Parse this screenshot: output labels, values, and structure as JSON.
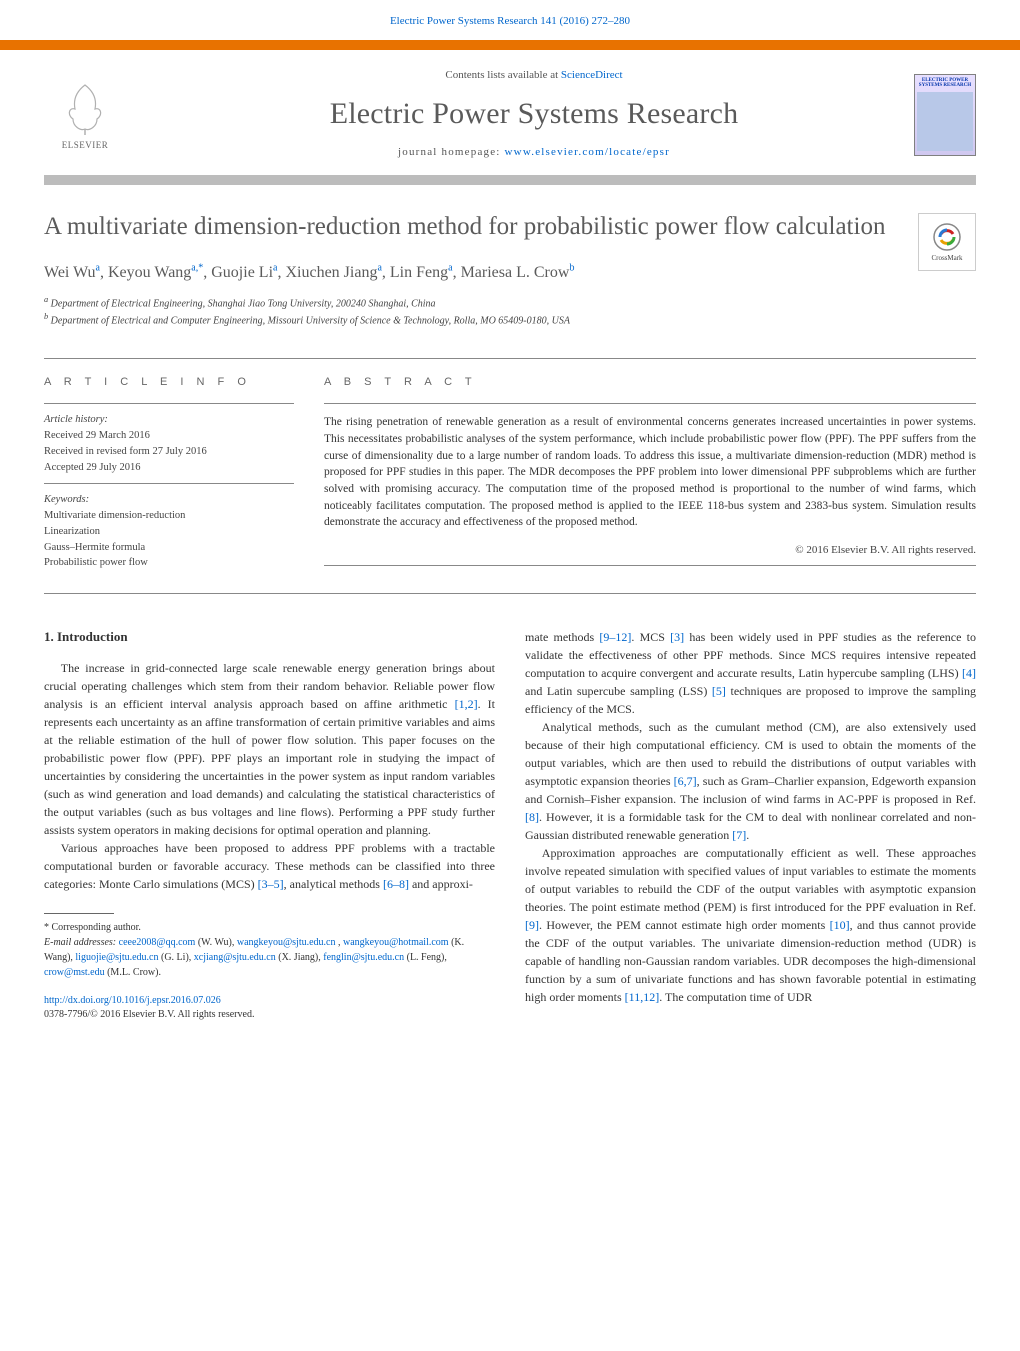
{
  "top_link": {
    "journal": "Electric Power Systems Research",
    "cite": "141 (2016) 272–280"
  },
  "masthead": {
    "contents_prefix": "Contents lists available at ",
    "contents_link": "ScienceDirect",
    "journal_name": "Electric Power Systems Research",
    "homepage_prefix": "journal homepage: ",
    "homepage_url": "www.elsevier.com/locate/epsr",
    "elsevier_label": "ELSEVIER",
    "cover_title": "ELECTRIC POWER SYSTEMS RESEARCH"
  },
  "crossmark_label": "CrossMark",
  "title": "A multivariate dimension-reduction method for probabilistic power flow calculation",
  "authors_html": "Wei Wu<sup>a</sup>, Keyou Wang<sup>a,*</sup>, Guojie Li<sup>a</sup>, Xiuchen Jiang<sup>a</sup>, Lin Feng<sup>a</sup>, Mariesa L. Crow<sup>b</sup>",
  "affiliations": {
    "a": "Department of Electrical Engineering, Shanghai Jiao Tong University, 200240 Shanghai, China",
    "b": "Department of Electrical and Computer Engineering, Missouri University of Science & Technology, Rolla, MO 65409-0180, USA"
  },
  "info": {
    "heading": "A R T I C L E   I N F O",
    "history_label": "Article history:",
    "received": "Received 29 March 2016",
    "revised": "Received in revised form 27 July 2016",
    "accepted": "Accepted 29 July 2016",
    "keywords_label": "Keywords:",
    "keywords": [
      "Multivariate dimension-reduction",
      "Linearization",
      "Gauss–Hermite formula",
      "Probabilistic power flow"
    ]
  },
  "abstract": {
    "heading": "A B S T R A C T",
    "text": "The rising penetration of renewable generation as a result of environmental concerns generates increased uncertainties in power systems. This necessitates probabilistic analyses of the system performance, which include probabilistic power flow (PPF). The PPF suffers from the curse of dimensionality due to a large number of random loads. To address this issue, a multivariate dimension-reduction (MDR) method is proposed for PPF studies in this paper. The MDR decomposes the PPF problem into lower dimensional PPF subproblems which are further solved with promising accuracy. The computation time of the proposed method is proportional to the number of wind farms, which noticeably facilitates computation. The proposed method is applied to the IEEE 118-bus system and 2383-bus system. Simulation results demonstrate the accuracy and effectiveness of the proposed method.",
    "copyright": "© 2016 Elsevier B.V. All rights reserved."
  },
  "section1_heading": "1. Introduction",
  "left_paras": [
    "The increase in grid-connected large scale renewable energy generation brings about crucial operating challenges which stem from their random behavior. Reliable power flow analysis is an efficient interval analysis approach based on affine arithmetic [1,2]. It represents each uncertainty as an affine transformation of certain primitive variables and aims at the reliable estimation of the hull of power flow solution. This paper focuses on the probabilistic power flow (PPF). PPF plays an important role in studying the impact of uncertainties by considering the uncertainties in the power system as input random variables (such as wind generation and load demands) and calculating the statistical characteristics of the output variables (such as bus voltages and line flows). Performing a PPF study further assists system operators in making decisions for optimal operation and planning.",
    "Various approaches have been proposed to address PPF problems with a tractable computational burden or favorable accuracy. These methods can be classified into three categories: Monte Carlo simulations (MCS) [3–5], analytical methods [6–8] and approxi-"
  ],
  "right_paras": [
    "mate methods [9–12]. MCS [3] has been widely used in PPF studies as the reference to validate the effectiveness of other PPF methods. Since MCS requires intensive repeated computation to acquire convergent and accurate results, Latin hypercube sampling (LHS) [4] and Latin supercube sampling (LSS) [5] techniques are proposed to improve the sampling efficiency of the MCS.",
    "Analytical methods, such as the cumulant method (CM), are also extensively used because of their high computational efficiency. CM is used to obtain the moments of the output variables, which are then used to rebuild the distributions of output variables with asymptotic expansion theories [6,7], such as Gram–Charlier expansion, Edgeworth expansion and Cornish–Fisher expansion. The inclusion of wind farms in AC-PPF is proposed in Ref. [8]. However, it is a formidable task for the CM to deal with nonlinear correlated and non-Gaussian distributed renewable generation [7].",
    "Approximation approaches are computationally efficient as well. These approaches involve repeated simulation with specified values of input variables to estimate the moments of output variables to rebuild the CDF of the output variables with asymptotic expansion theories. The point estimate method (PEM) is first introduced for the PPF evaluation in Ref. [9]. However, the PEM cannot estimate high order moments [10], and thus cannot provide the CDF of the output variables. The univariate dimension-reduction method (UDR) is capable of handling non-Gaussian random variables. UDR decomposes the high-dimensional function by a sum of univariate functions and has shown favorable potential in estimating high order moments [11,12]. The computation time of UDR"
  ],
  "footnote": {
    "corr": "* Corresponding author.",
    "email_label": "E-mail addresses:",
    "emails": [
      {
        "addr": "ceee2008@qq.com",
        "who": "(W. Wu),"
      },
      {
        "addr": "wangkeyou@sjtu.edu.cn",
        "who": ","
      },
      {
        "addr": "wangkeyou@hotmail.com",
        "who": "(K. Wang),"
      },
      {
        "addr": "liguojie@sjtu.edu.cn",
        "who": "(G. Li),"
      },
      {
        "addr": "xcjiang@sjtu.edu.cn",
        "who": "(X. Jiang),"
      },
      {
        "addr": "fenglin@sjtu.edu.cn",
        "who": "(L. Feng),"
      },
      {
        "addr": "crow@mst.edu",
        "who": "(M.L. Crow)."
      }
    ]
  },
  "doi": {
    "url": "http://dx.doi.org/10.1016/j.epsr.2016.07.026",
    "issn_line": "0378-7796/© 2016 Elsevier B.V. All rights reserved."
  },
  "colors": {
    "orange": "#e87200",
    "gray_bar": "#bcbcbc",
    "link": "#0066cc",
    "heading_gray": "#5b5b5b"
  }
}
